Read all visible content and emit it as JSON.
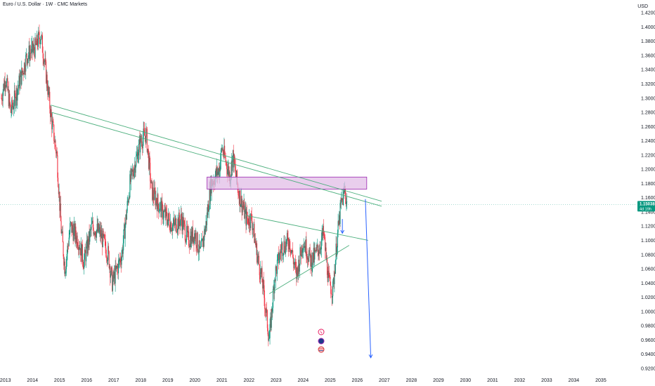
{
  "header": {
    "title": "Euro / U.S. Dollar · 1W · CMC Markets",
    "currency": "USD"
  },
  "price_badge": {
    "price": "1.15038",
    "countdown": "4d 19h",
    "color": "#089981"
  },
  "colors": {
    "up": "#089981",
    "down": "#f23645",
    "trendline": "#4caf7d",
    "zone_fill": "#e1bee7",
    "zone_border": "#9c27b0",
    "arrow": "#2962ff"
  },
  "icons": [
    "flash-event-icon",
    "economic-event-icon",
    "flag-event-icon"
  ],
  "chart_data": {
    "type": "candlestick",
    "x_ticks": [
      "2013",
      "2014",
      "2015",
      "2016",
      "2017",
      "2018",
      "2019",
      "2020",
      "2021",
      "2022",
      "2023",
      "2024",
      "2025",
      "2026",
      "2027",
      "2028",
      "2029",
      "2030",
      "2031",
      "2032",
      "2033",
      "2034",
      "2035"
    ],
    "y_ticks": [
      "1.42000",
      "1.40000",
      "1.38000",
      "1.36000",
      "1.34000",
      "1.32000",
      "1.30000",
      "1.28000",
      "1.26000",
      "1.24000",
      "1.22000",
      "1.20000",
      "1.18000",
      "1.16000",
      "1.14000",
      "1.12000",
      "1.10000",
      "1.08000",
      "1.06000",
      "1.04000",
      "1.02000",
      "1.00000",
      "0.98000",
      "0.96000",
      "0.94000",
      "0.92000"
    ],
    "ylim": [
      0.915,
      1.43
    ],
    "xlim": [
      2012.8,
      2036.3
    ],
    "last_price": 1.15038,
    "price_path": [
      [
        2012.85,
        1.3
      ],
      [
        2013.0,
        1.33
      ],
      [
        2013.2,
        1.28
      ],
      [
        2013.5,
        1.32
      ],
      [
        2013.8,
        1.36
      ],
      [
        2014.1,
        1.37
      ],
      [
        2014.3,
        1.39
      ],
      [
        2014.45,
        1.35
      ],
      [
        2014.7,
        1.27
      ],
      [
        2014.9,
        1.22
      ],
      [
        2015.05,
        1.12
      ],
      [
        2015.2,
        1.06
      ],
      [
        2015.4,
        1.12
      ],
      [
        2015.7,
        1.1
      ],
      [
        2015.9,
        1.07
      ],
      [
        2016.2,
        1.12
      ],
      [
        2016.5,
        1.11
      ],
      [
        2016.8,
        1.08
      ],
      [
        2016.95,
        1.04
      ],
      [
        2017.3,
        1.08
      ],
      [
        2017.6,
        1.18
      ],
      [
        2018.0,
        1.24
      ],
      [
        2018.2,
        1.25
      ],
      [
        2018.4,
        1.17
      ],
      [
        2018.8,
        1.14
      ],
      [
        2019.2,
        1.12
      ],
      [
        2019.5,
        1.13
      ],
      [
        2019.75,
        1.1
      ],
      [
        2020.0,
        1.11
      ],
      [
        2020.2,
        1.08
      ],
      [
        2020.4,
        1.12
      ],
      [
        2020.6,
        1.18
      ],
      [
        2020.9,
        1.2
      ],
      [
        2021.0,
        1.23
      ],
      [
        2021.3,
        1.19
      ],
      [
        2021.4,
        1.22
      ],
      [
        2021.6,
        1.17
      ],
      [
        2021.9,
        1.13
      ],
      [
        2022.1,
        1.13
      ],
      [
        2022.3,
        1.08
      ],
      [
        2022.5,
        1.04
      ],
      [
        2022.75,
        0.96
      ],
      [
        2022.95,
        1.05
      ],
      [
        2023.2,
        1.09
      ],
      [
        2023.5,
        1.1
      ],
      [
        2023.75,
        1.05
      ],
      [
        2024.0,
        1.1
      ],
      [
        2024.3,
        1.07
      ],
      [
        2024.6,
        1.09
      ],
      [
        2024.75,
        1.11
      ],
      [
        2024.95,
        1.04
      ],
      [
        2025.1,
        1.03
      ],
      [
        2025.25,
        1.1
      ],
      [
        2025.4,
        1.15
      ],
      [
        2025.55,
        1.17
      ],
      [
        2025.62,
        1.15
      ]
    ],
    "trendlines": [
      {
        "from": [
          2014.7,
          1.29
        ],
        "to": [
          2026.9,
          1.155
        ]
      },
      {
        "from": [
          2014.7,
          1.28
        ],
        "to": [
          2026.9,
          1.148
        ]
      },
      {
        "from": [
          2021.9,
          1.135
        ],
        "to": [
          2026.4,
          1.1
        ]
      },
      {
        "from": [
          2022.75,
          1.025
        ],
        "to": [
          2025.7,
          1.093
        ]
      }
    ],
    "zone": {
      "x": [
        2020.45,
        2026.35
      ],
      "y": [
        1.172,
        1.189
      ]
    },
    "arrows": [
      {
        "from": [
          2025.45,
          1.13
        ],
        "to": [
          2025.45,
          1.11
        ]
      },
      {
        "from": [
          2026.3,
          1.158
        ],
        "to": [
          2026.5,
          0.935
        ]
      }
    ]
  }
}
